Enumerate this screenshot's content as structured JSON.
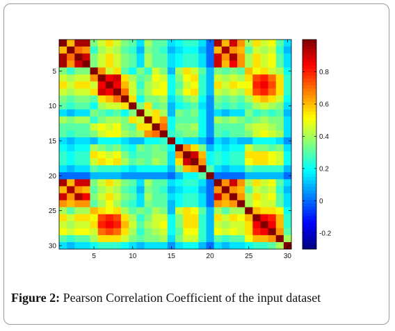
{
  "caption": {
    "label": "Figure 2:",
    "text": " Pearson Correlation Coefficient of the input dataset"
  },
  "chart_data": {
    "type": "heatmap",
    "title": "",
    "xlabel": "",
    "ylabel": "",
    "size": 30,
    "x_ticks": [
      5,
      10,
      15,
      20,
      25,
      30
    ],
    "y_ticks": [
      5,
      10,
      15,
      20,
      25,
      30
    ],
    "colorbar": {
      "ticks": [
        -0.2,
        0,
        0.2,
        0.4,
        0.6,
        0.8
      ],
      "tick_labels": [
        "-0.2",
        "0",
        "0.2",
        "0.4",
        "0.6",
        "0.8"
      ],
      "range": [
        -0.3,
        1.0
      ],
      "colormap": "jet"
    },
    "values": [
      [
        1.0,
        0.6,
        0.95,
        0.95,
        0.35,
        0.45,
        0.55,
        0.45,
        0.35,
        0.3,
        0.15,
        0.4,
        0.3,
        0.3,
        0.15,
        0.2,
        0.25,
        0.25,
        0.15,
        0.0,
        0.95,
        0.6,
        0.9,
        0.65,
        0.4,
        0.55,
        0.45,
        0.5,
        0.3,
        0.15
      ],
      [
        0.6,
        1.0,
        0.7,
        0.65,
        0.25,
        0.4,
        0.45,
        0.4,
        0.3,
        0.25,
        0.1,
        0.35,
        0.3,
        0.25,
        0.1,
        0.15,
        0.2,
        0.2,
        0.1,
        0.0,
        0.6,
        0.95,
        0.65,
        0.6,
        0.3,
        0.45,
        0.4,
        0.45,
        0.25,
        0.1
      ],
      [
        0.95,
        0.7,
        1.0,
        0.9,
        0.35,
        0.45,
        0.55,
        0.45,
        0.35,
        0.3,
        0.15,
        0.4,
        0.3,
        0.3,
        0.15,
        0.2,
        0.25,
        0.25,
        0.15,
        0.0,
        0.9,
        0.65,
        0.95,
        0.65,
        0.4,
        0.55,
        0.45,
        0.5,
        0.3,
        0.15
      ],
      [
        0.95,
        0.65,
        0.9,
        1.0,
        0.35,
        0.45,
        0.55,
        0.45,
        0.35,
        0.3,
        0.15,
        0.4,
        0.3,
        0.3,
        0.15,
        0.2,
        0.25,
        0.25,
        0.15,
        0.0,
        0.9,
        0.6,
        0.85,
        0.65,
        0.4,
        0.55,
        0.45,
        0.5,
        0.3,
        0.15
      ],
      [
        0.35,
        0.25,
        0.35,
        0.35,
        1.0,
        0.65,
        0.45,
        0.55,
        0.3,
        0.2,
        0.35,
        0.25,
        0.45,
        0.35,
        0.1,
        0.4,
        0.55,
        0.45,
        0.3,
        0.1,
        0.35,
        0.3,
        0.35,
        0.3,
        0.6,
        0.5,
        0.55,
        0.45,
        0.4,
        0.2
      ],
      [
        0.45,
        0.4,
        0.45,
        0.45,
        0.65,
        1.0,
        0.85,
        0.9,
        0.55,
        0.4,
        0.3,
        0.35,
        0.5,
        0.45,
        0.2,
        0.35,
        0.5,
        0.55,
        0.25,
        0.1,
        0.45,
        0.4,
        0.45,
        0.4,
        0.55,
        0.75,
        0.8,
        0.7,
        0.55,
        0.25
      ],
      [
        0.55,
        0.45,
        0.55,
        0.55,
        0.45,
        0.85,
        1.0,
        0.85,
        0.6,
        0.45,
        0.25,
        0.4,
        0.45,
        0.5,
        0.2,
        0.3,
        0.45,
        0.5,
        0.25,
        0.1,
        0.55,
        0.45,
        0.55,
        0.5,
        0.5,
        0.8,
        0.85,
        0.75,
        0.55,
        0.25
      ],
      [
        0.45,
        0.4,
        0.45,
        0.45,
        0.55,
        0.9,
        0.85,
        1.0,
        0.7,
        0.45,
        0.3,
        0.4,
        0.5,
        0.5,
        0.2,
        0.35,
        0.5,
        0.55,
        0.25,
        0.1,
        0.45,
        0.4,
        0.45,
        0.4,
        0.55,
        0.75,
        0.8,
        0.7,
        0.55,
        0.25
      ],
      [
        0.35,
        0.3,
        0.35,
        0.35,
        0.3,
        0.55,
        0.6,
        0.7,
        1.0,
        0.55,
        0.2,
        0.35,
        0.35,
        0.4,
        0.15,
        0.25,
        0.35,
        0.4,
        0.2,
        0.05,
        0.35,
        0.3,
        0.35,
        0.3,
        0.4,
        0.55,
        0.6,
        0.55,
        0.45,
        0.2
      ],
      [
        0.3,
        0.25,
        0.3,
        0.3,
        0.2,
        0.4,
        0.45,
        0.45,
        0.55,
        1.0,
        0.35,
        0.55,
        0.3,
        0.35,
        0.1,
        0.2,
        0.25,
        0.3,
        0.15,
        0.05,
        0.3,
        0.25,
        0.3,
        0.25,
        0.3,
        0.4,
        0.45,
        0.4,
        0.35,
        0.15
      ],
      [
        0.15,
        0.1,
        0.15,
        0.15,
        0.35,
        0.3,
        0.25,
        0.3,
        0.2,
        0.35,
        1.0,
        0.45,
        0.55,
        0.4,
        0.1,
        0.35,
        0.3,
        0.35,
        0.2,
        0.05,
        0.15,
        0.1,
        0.15,
        0.15,
        0.35,
        0.25,
        0.3,
        0.25,
        0.3,
        0.1
      ],
      [
        0.4,
        0.35,
        0.4,
        0.4,
        0.25,
        0.35,
        0.4,
        0.4,
        0.35,
        0.55,
        0.45,
        1.0,
        0.55,
        0.65,
        0.2,
        0.3,
        0.3,
        0.3,
        0.2,
        0.05,
        0.4,
        0.35,
        0.4,
        0.35,
        0.3,
        0.35,
        0.4,
        0.35,
        0.35,
        0.15
      ],
      [
        0.3,
        0.3,
        0.3,
        0.3,
        0.45,
        0.5,
        0.45,
        0.5,
        0.35,
        0.3,
        0.55,
        0.55,
        1.0,
        0.7,
        0.2,
        0.35,
        0.35,
        0.4,
        0.2,
        0.05,
        0.3,
        0.3,
        0.3,
        0.3,
        0.4,
        0.45,
        0.45,
        0.4,
        0.35,
        0.15
      ],
      [
        0.3,
        0.25,
        0.3,
        0.3,
        0.35,
        0.45,
        0.5,
        0.5,
        0.4,
        0.35,
        0.4,
        0.65,
        0.7,
        1.0,
        0.25,
        0.3,
        0.35,
        0.35,
        0.2,
        0.05,
        0.3,
        0.25,
        0.3,
        0.3,
        0.35,
        0.45,
        0.5,
        0.45,
        0.4,
        0.15
      ],
      [
        0.15,
        0.1,
        0.15,
        0.15,
        0.1,
        0.2,
        0.2,
        0.2,
        0.15,
        0.1,
        0.1,
        0.2,
        0.2,
        0.25,
        1.0,
        0.2,
        0.15,
        0.15,
        0.1,
        0.0,
        0.15,
        0.1,
        0.15,
        0.1,
        0.1,
        0.2,
        0.2,
        0.2,
        0.15,
        0.05
      ],
      [
        0.2,
        0.15,
        0.2,
        0.2,
        0.4,
        0.35,
        0.3,
        0.35,
        0.25,
        0.2,
        0.35,
        0.3,
        0.35,
        0.3,
        0.2,
        1.0,
        0.65,
        0.55,
        0.35,
        0.1,
        0.2,
        0.15,
        0.2,
        0.2,
        0.45,
        0.35,
        0.35,
        0.3,
        0.35,
        0.15
      ],
      [
        0.25,
        0.2,
        0.25,
        0.25,
        0.55,
        0.5,
        0.45,
        0.5,
        0.35,
        0.25,
        0.3,
        0.3,
        0.35,
        0.35,
        0.15,
        0.65,
        1.0,
        0.9,
        0.6,
        0.2,
        0.25,
        0.2,
        0.25,
        0.25,
        0.55,
        0.55,
        0.55,
        0.5,
        0.45,
        0.2
      ],
      [
        0.25,
        0.2,
        0.25,
        0.25,
        0.45,
        0.55,
        0.5,
        0.55,
        0.4,
        0.3,
        0.35,
        0.3,
        0.4,
        0.35,
        0.15,
        0.55,
        0.9,
        1.0,
        0.65,
        0.2,
        0.25,
        0.2,
        0.25,
        0.25,
        0.5,
        0.55,
        0.55,
        0.5,
        0.45,
        0.2
      ],
      [
        0.15,
        0.1,
        0.15,
        0.15,
        0.3,
        0.25,
        0.25,
        0.25,
        0.2,
        0.15,
        0.2,
        0.2,
        0.2,
        0.2,
        0.1,
        0.35,
        0.6,
        0.65,
        1.0,
        0.3,
        0.15,
        0.1,
        0.15,
        0.15,
        0.3,
        0.25,
        0.25,
        0.25,
        0.25,
        0.1
      ],
      [
        0.0,
        0.0,
        0.0,
        0.0,
        0.1,
        0.1,
        0.1,
        0.1,
        0.05,
        0.05,
        0.05,
        0.05,
        0.05,
        0.05,
        0.0,
        0.1,
        0.2,
        0.2,
        0.3,
        1.0,
        0.0,
        0.0,
        0.0,
        0.0,
        0.1,
        0.1,
        0.1,
        0.1,
        0.1,
        0.0
      ],
      [
        0.95,
        0.6,
        0.9,
        0.9,
        0.35,
        0.45,
        0.55,
        0.45,
        0.35,
        0.3,
        0.15,
        0.4,
        0.3,
        0.3,
        0.15,
        0.2,
        0.25,
        0.25,
        0.15,
        0.0,
        1.0,
        0.65,
        0.9,
        0.65,
        0.4,
        0.55,
        0.45,
        0.5,
        0.3,
        0.15
      ],
      [
        0.6,
        0.95,
        0.65,
        0.6,
        0.3,
        0.4,
        0.45,
        0.4,
        0.3,
        0.25,
        0.1,
        0.35,
        0.3,
        0.25,
        0.1,
        0.15,
        0.2,
        0.2,
        0.1,
        0.0,
        0.65,
        1.0,
        0.65,
        0.6,
        0.3,
        0.45,
        0.4,
        0.45,
        0.25,
        0.1
      ],
      [
        0.9,
        0.65,
        0.95,
        0.85,
        0.35,
        0.45,
        0.55,
        0.45,
        0.35,
        0.3,
        0.15,
        0.4,
        0.3,
        0.3,
        0.15,
        0.2,
        0.25,
        0.25,
        0.15,
        0.0,
        0.9,
        0.65,
        1.0,
        0.65,
        0.4,
        0.55,
        0.45,
        0.5,
        0.3,
        0.15
      ],
      [
        0.65,
        0.6,
        0.65,
        0.65,
        0.3,
        0.4,
        0.5,
        0.4,
        0.3,
        0.25,
        0.15,
        0.35,
        0.3,
        0.3,
        0.1,
        0.2,
        0.25,
        0.25,
        0.15,
        0.0,
        0.65,
        0.6,
        0.65,
        1.0,
        0.4,
        0.5,
        0.45,
        0.45,
        0.3,
        0.15
      ],
      [
        0.4,
        0.3,
        0.4,
        0.4,
        0.6,
        0.55,
        0.5,
        0.55,
        0.4,
        0.3,
        0.35,
        0.3,
        0.4,
        0.35,
        0.1,
        0.45,
        0.55,
        0.5,
        0.3,
        0.1,
        0.4,
        0.3,
        0.4,
        0.4,
        1.0,
        0.6,
        0.55,
        0.55,
        0.5,
        0.2
      ],
      [
        0.55,
        0.45,
        0.55,
        0.55,
        0.5,
        0.75,
        0.8,
        0.75,
        0.55,
        0.4,
        0.25,
        0.35,
        0.45,
        0.45,
        0.2,
        0.35,
        0.55,
        0.55,
        0.25,
        0.1,
        0.55,
        0.45,
        0.55,
        0.5,
        0.6,
        1.0,
        0.85,
        0.8,
        0.6,
        0.25
      ],
      [
        0.45,
        0.4,
        0.45,
        0.45,
        0.55,
        0.8,
        0.85,
        0.8,
        0.6,
        0.45,
        0.3,
        0.4,
        0.45,
        0.5,
        0.2,
        0.35,
        0.55,
        0.55,
        0.25,
        0.1,
        0.45,
        0.4,
        0.45,
        0.45,
        0.55,
        0.85,
        1.0,
        0.85,
        0.6,
        0.25
      ],
      [
        0.5,
        0.45,
        0.5,
        0.5,
        0.45,
        0.7,
        0.75,
        0.7,
        0.55,
        0.4,
        0.25,
        0.35,
        0.4,
        0.45,
        0.2,
        0.3,
        0.5,
        0.5,
        0.25,
        0.1,
        0.5,
        0.45,
        0.5,
        0.45,
        0.55,
        0.8,
        0.85,
        1.0,
        0.65,
        0.3
      ],
      [
        0.3,
        0.25,
        0.3,
        0.3,
        0.4,
        0.55,
        0.55,
        0.55,
        0.45,
        0.35,
        0.3,
        0.35,
        0.35,
        0.4,
        0.15,
        0.35,
        0.45,
        0.45,
        0.25,
        0.1,
        0.3,
        0.25,
        0.3,
        0.3,
        0.5,
        0.6,
        0.6,
        0.65,
        1.0,
        0.4
      ],
      [
        0.15,
        0.1,
        0.15,
        0.15,
        0.2,
        0.25,
        0.25,
        0.25,
        0.2,
        0.15,
        0.1,
        0.15,
        0.15,
        0.15,
        0.05,
        0.15,
        0.2,
        0.2,
        0.1,
        0.0,
        0.15,
        0.1,
        0.15,
        0.15,
        0.2,
        0.25,
        0.25,
        0.3,
        0.4,
        1.0
      ]
    ]
  }
}
